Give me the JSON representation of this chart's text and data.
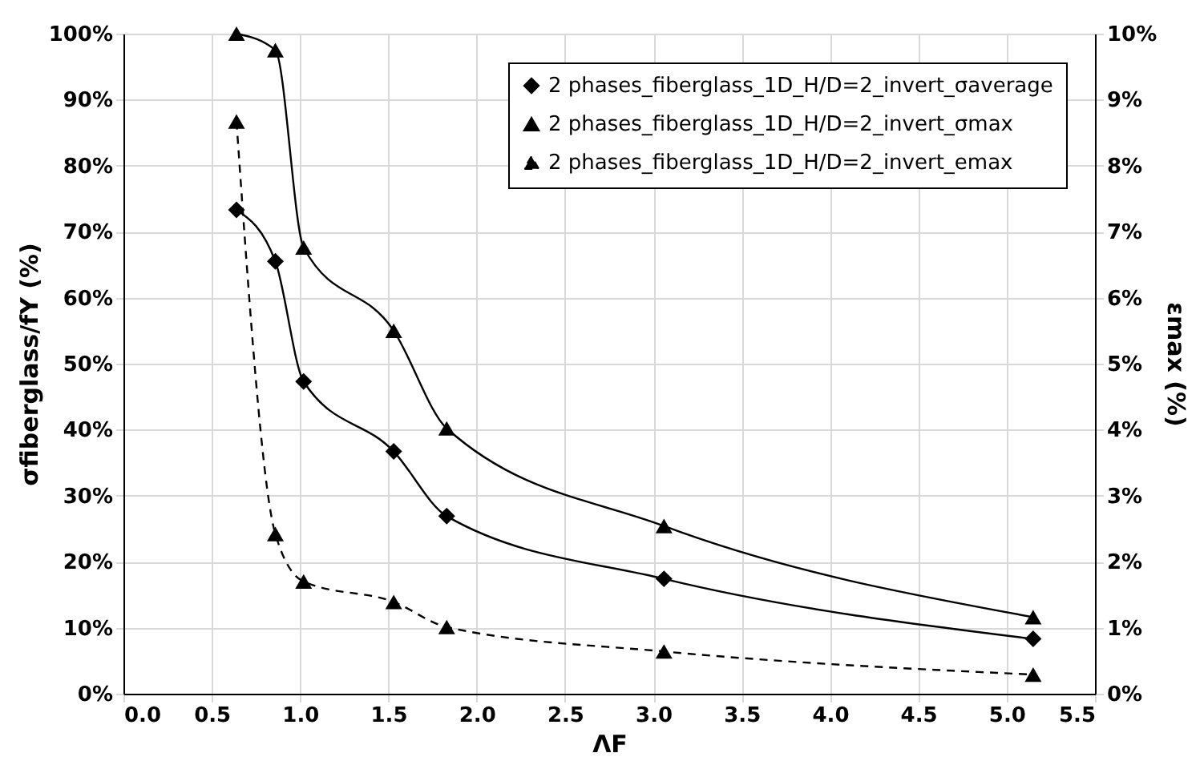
{
  "chart_data": {
    "type": "line",
    "xlabel": "ΛF",
    "ylabel": "σfiberglass/fY (%)",
    "y2label": "εmax (%)",
    "xlim": [
      0,
      5.5
    ],
    "xticks": [
      {
        "value": 0,
        "label": "0.0"
      },
      {
        "value": 0.5,
        "label": "0.5"
      },
      {
        "value": 1,
        "label": "1.0"
      },
      {
        "value": 1.5,
        "label": "1.5"
      },
      {
        "value": 2,
        "label": "2.0"
      },
      {
        "value": 2.5,
        "label": "2.5"
      },
      {
        "value": 3,
        "label": "3.0"
      },
      {
        "value": 3.5,
        "label": "3.5"
      },
      {
        "value": 4,
        "label": "4.0"
      },
      {
        "value": 4.5,
        "label": "4.5"
      },
      {
        "value": 5,
        "label": "5.0"
      },
      {
        "value": 5.5,
        "label": "5.5"
      }
    ],
    "ylim": [
      0,
      100
    ],
    "yticks": [
      {
        "value": 0,
        "label": "0%"
      },
      {
        "value": 10,
        "label": "10%"
      },
      {
        "value": 20,
        "label": "20%"
      },
      {
        "value": 30,
        "label": "30%"
      },
      {
        "value": 40,
        "label": "40%"
      },
      {
        "value": 50,
        "label": "50%"
      },
      {
        "value": 60,
        "label": "60%"
      },
      {
        "value": 70,
        "label": "70%"
      },
      {
        "value": 80,
        "label": "80%"
      },
      {
        "value": 90,
        "label": "90%"
      },
      {
        "value": 100,
        "label": "100%"
      }
    ],
    "y2lim": [
      0,
      10
    ],
    "y2ticks": [
      {
        "value": 0,
        "label": "0%"
      },
      {
        "value": 1,
        "label": "1%"
      },
      {
        "value": 2,
        "label": "2%"
      },
      {
        "value": 3,
        "label": "3%"
      },
      {
        "value": 4,
        "label": "4%"
      },
      {
        "value": 5,
        "label": "5%"
      },
      {
        "value": 6,
        "label": "6%"
      },
      {
        "value": 7,
        "label": "7%"
      },
      {
        "value": 8,
        "label": "8%"
      },
      {
        "value": 9,
        "label": "9%"
      },
      {
        "value": 10,
        "label": "10%"
      }
    ],
    "x": [
      0.64,
      0.86,
      1.02,
      1.53,
      1.83,
      3.06,
      5.15
    ],
    "grid": true,
    "legend": "top right",
    "series": [
      {
        "name": "2 phases_fiberglass_1D_H/D=2_invert_σaverage",
        "color": "#000000",
        "marker": "diamond",
        "line_style": "solid",
        "values": [
          73.3,
          65.5,
          47.3,
          36.7,
          26.9,
          17.4,
          8.3
        ]
      },
      {
        "name": "2 phases_fiberglass_1D_H/D=2_invert_σmax",
        "color": "#000000",
        "marker": "triangle",
        "line_style": "solid",
        "values": [
          100,
          97.5,
          67.6,
          55.0,
          40.2,
          25.4,
          11.6
        ]
      },
      {
        "name": "2 phases_fiberglass_1D_H/D=2_invert_emax",
        "color": "#000000",
        "marker": "triangle",
        "line_style": "dashed",
        "axis": "y2",
        "values": [
          8.67,
          2.42,
          1.7,
          1.39,
          1.01,
          0.64,
          0.29
        ]
      }
    ]
  }
}
